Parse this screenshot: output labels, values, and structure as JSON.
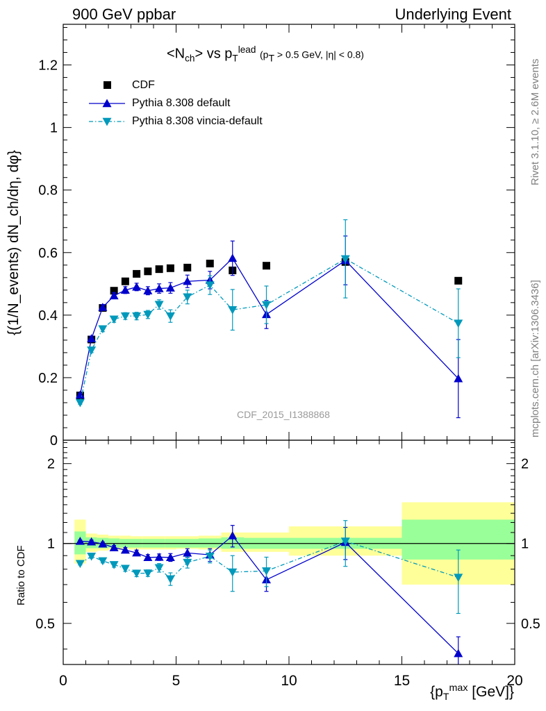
{
  "header": {
    "left": "900 GeV ppbar",
    "right": "Underlying Event"
  },
  "side_labels": {
    "rivet": "Rivet 3.1.10, ≥ 2.6M events",
    "mcplots": "mcplots.cern.ch [arXiv:1306.3436]"
  },
  "watermark": "CDF_2015_I1388868",
  "plot_title": {
    "main": "<N",
    "main_sub": "ch",
    "vs": "> vs p",
    "vs_sup": "lead",
    "vs_sub": "T",
    "cut_open": "(p",
    "cut_sub": "T",
    "cut_rest": " > 0.5 GeV, |η| < 0.8)"
  },
  "axes": {
    "main_ylabel": "{(1/N_events) dN_ch/dη, dφ}",
    "ratio_ylabel": "Ratio to CDF",
    "xlabel_open": "{p",
    "xlabel_sup": "max",
    "xlabel_sub": "T",
    "xlabel_rest": " [GeV]}"
  },
  "colors": {
    "cdf": "#000000",
    "default": "#0000cc",
    "vincia": "#0099bb",
    "band_inner": "#99ff99",
    "band_outer": "#ffff99"
  },
  "chart_data": [
    {
      "type": "scatter",
      "panel": "main",
      "ylabel": "{(1/N_events) dN_ch/dη, dφ}",
      "xlim": [
        0,
        20
      ],
      "ylim": [
        0,
        1.33
      ],
      "yticks": [
        0,
        0.2,
        0.4,
        0.6,
        0.8,
        1,
        1.2
      ],
      "yticklabels": [
        "0",
        "0.2",
        "0.4",
        "0.6",
        "0.8",
        "1",
        "1.2"
      ],
      "legend_position": "top-left",
      "series": [
        {
          "name": "CDF",
          "marker": "square",
          "x": [
            0.75,
            1.25,
            1.75,
            2.25,
            2.75,
            3.25,
            3.75,
            4.25,
            4.75,
            5.5,
            6.5,
            7.5,
            9.0,
            12.5,
            17.5
          ],
          "y": [
            0.143,
            0.322,
            0.423,
            0.478,
            0.508,
            0.532,
            0.54,
            0.547,
            0.55,
            0.552,
            0.565,
            0.543,
            0.558,
            0.57,
            0.51
          ],
          "xerr": [
            0.25,
            0.25,
            0.25,
            0.25,
            0.25,
            0.25,
            0.25,
            0.25,
            0.25,
            0.5,
            0.5,
            0.5,
            1.0,
            2.5,
            2.5
          ]
        },
        {
          "name": "Pythia 8.308 default",
          "marker": "triangle-up",
          "x": [
            0.75,
            1.25,
            1.75,
            2.25,
            2.75,
            3.25,
            3.75,
            4.25,
            4.75,
            5.5,
            6.5,
            7.5,
            9.0,
            12.5,
            17.5
          ],
          "y": [
            0.145,
            0.325,
            0.425,
            0.462,
            0.48,
            0.49,
            0.478,
            0.485,
            0.487,
            0.508,
            0.512,
            0.582,
            0.402,
            0.575,
            0.197
          ],
          "yerr": [
            0.005,
            0.008,
            0.009,
            0.01,
            0.011,
            0.012,
            0.013,
            0.015,
            0.017,
            0.02,
            0.028,
            0.055,
            0.045,
            0.078,
            0.125
          ]
        },
        {
          "name": "Pythia 8.308 vincia-default",
          "marker": "triangle-down",
          "x": [
            0.75,
            1.25,
            1.75,
            2.25,
            2.75,
            3.25,
            3.75,
            4.25,
            4.75,
            5.5,
            6.5,
            7.5,
            9.0,
            12.5,
            17.5
          ],
          "y": [
            0.12,
            0.288,
            0.356,
            0.387,
            0.397,
            0.397,
            0.402,
            0.434,
            0.397,
            0.458,
            0.496,
            0.417,
            0.433,
            0.58,
            0.374
          ],
          "yerr": [
            0.005,
            0.008,
            0.009,
            0.01,
            0.011,
            0.012,
            0.013,
            0.015,
            0.02,
            0.022,
            0.03,
            0.065,
            0.06,
            0.125,
            0.11
          ]
        }
      ]
    },
    {
      "type": "scatter",
      "panel": "ratio",
      "ylabel": "Ratio to CDF",
      "xlabel": "{p_T^max [GeV]}",
      "xlim": [
        0,
        20
      ],
      "xticks": [
        0,
        5,
        10,
        15,
        20
      ],
      "xticklabels": [
        "0",
        "5",
        "10",
        "15",
        "20"
      ],
      "ylim": [
        0.35,
        2.45
      ],
      "log_scale_y": true,
      "yticks": [
        0.5,
        1,
        2
      ],
      "yticklabels": [
        "0.5",
        "1",
        "2"
      ],
      "reference_line": 1,
      "uncertainty_bands": {
        "x_edges": [
          0.5,
          1.0,
          1.5,
          2.0,
          2.5,
          3.0,
          3.5,
          4.0,
          4.5,
          5.0,
          6.0,
          7.0,
          8.0,
          10.0,
          15.0,
          20.0
        ],
        "inner_lo": [
          0.91,
          0.96,
          0.96,
          0.965,
          0.965,
          0.965,
          0.965,
          0.965,
          0.965,
          0.965,
          0.965,
          0.955,
          0.955,
          0.955,
          0.87
        ],
        "inner_hi": [
          1.11,
          1.055,
          1.05,
          1.045,
          1.04,
          1.04,
          1.04,
          1.04,
          1.04,
          1.04,
          1.045,
          1.055,
          1.05,
          1.05,
          1.23
        ],
        "outer_lo": [
          0.84,
          0.93,
          0.94,
          0.945,
          0.95,
          0.95,
          0.95,
          0.95,
          0.95,
          0.955,
          0.95,
          0.93,
          0.93,
          0.9,
          0.7
        ],
        "outer_hi": [
          1.23,
          1.09,
          1.08,
          1.07,
          1.07,
          1.065,
          1.065,
          1.065,
          1.065,
          1.065,
          1.07,
          1.1,
          1.1,
          1.16,
          1.43
        ]
      },
      "series": [
        {
          "name": "Pythia 8.308 default",
          "x": [
            0.75,
            1.25,
            1.75,
            2.25,
            2.75,
            3.25,
            3.75,
            4.25,
            4.75,
            5.5,
            6.5,
            7.5,
            9.0,
            12.5,
            17.5
          ],
          "y": [
            1.02,
            1.015,
            0.997,
            0.965,
            0.945,
            0.922,
            0.886,
            0.888,
            0.886,
            0.921,
            0.906,
            1.07,
            0.73,
            1.01,
            0.385
          ],
          "yerr": [
            0.01,
            0.015,
            0.015,
            0.018,
            0.02,
            0.022,
            0.022,
            0.025,
            0.03,
            0.035,
            0.05,
            0.1,
            0.07,
            0.14,
            0.06
          ]
        },
        {
          "name": "Pythia 8.308 vincia-default",
          "x": [
            0.75,
            1.25,
            1.75,
            2.25,
            2.75,
            3.25,
            3.75,
            4.25,
            4.75,
            5.5,
            6.5,
            7.5,
            9.0,
            12.5,
            17.5
          ],
          "y": [
            0.84,
            0.895,
            0.86,
            0.832,
            0.805,
            0.772,
            0.773,
            0.81,
            0.735,
            0.848,
            0.895,
            0.78,
            0.788,
            1.02,
            0.745
          ],
          "yerr": [
            0.01,
            0.015,
            0.015,
            0.018,
            0.02,
            0.022,
            0.022,
            0.03,
            0.04,
            0.04,
            0.05,
            0.12,
            0.1,
            0.2,
            0.2
          ]
        }
      ]
    }
  ]
}
